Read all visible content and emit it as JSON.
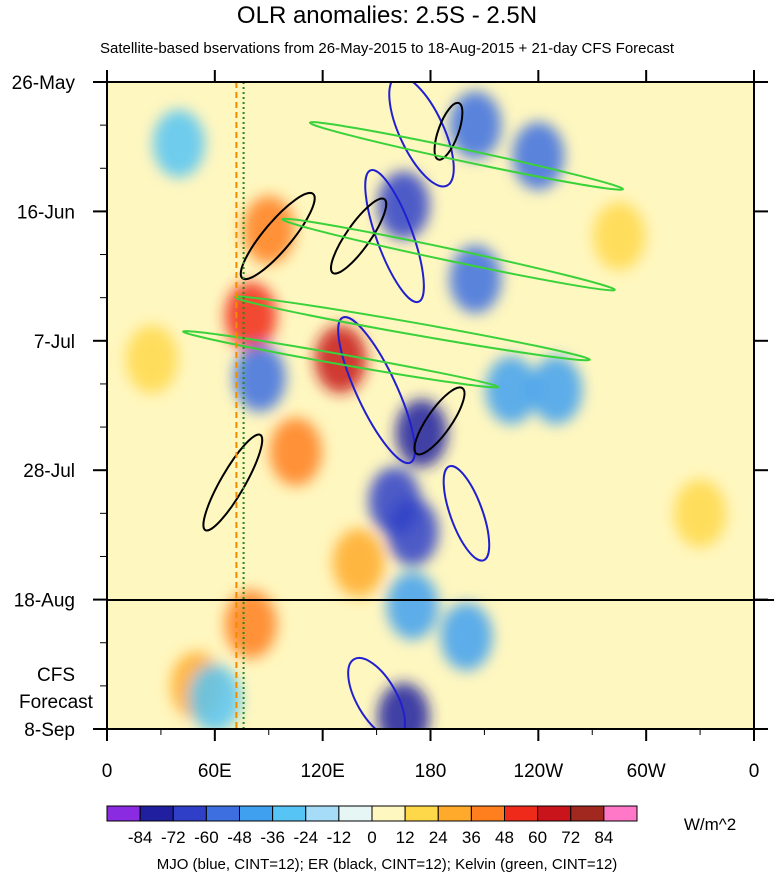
{
  "title": "OLR anomalies: 2.5S - 2.5N",
  "subtitle": "Satellite-based bservations from 26-May-2015 to 18-Aug-2015 + 21-day CFS Forecast",
  "footnote": "MJO (blue, CINT=12); ER (black, CINT=12); Kelvin (green, CINT=12)",
  "forecast_label_line1": "CFS",
  "forecast_label_line2": "Forecast",
  "chart_data": {
    "type": "heatmap",
    "title": "OLR anomalies: 2.5S - 2.5N",
    "subtitle": "Satellite-based bservations from 26-May-2015 to 18-Aug-2015 + 21-day CFS Forecast",
    "x_axis": {
      "range_deg": [
        0,
        360
      ],
      "ticks": [
        {
          "lon": 0,
          "label": "0"
        },
        {
          "lon": 60,
          "label": "60E"
        },
        {
          "lon": 120,
          "label": "120E"
        },
        {
          "lon": 180,
          "label": "180"
        },
        {
          "lon": 240,
          "label": "120W"
        },
        {
          "lon": 300,
          "label": "60W"
        },
        {
          "lon": 360,
          "label": "0"
        }
      ]
    },
    "y_axis": {
      "range": [
        "26-May-2015",
        "8-Sep-2015"
      ],
      "ticks": [
        {
          "day": 0,
          "label": "26-May"
        },
        {
          "day": 21,
          "label": "16-Jun"
        },
        {
          "day": 42,
          "label": "7-Jul"
        },
        {
          "day": 63,
          "label": "28-Jul"
        },
        {
          "day": 84,
          "label": "18-Aug"
        },
        {
          "day": 105,
          "label": "8-Sep"
        }
      ],
      "observation_end": "18-Aug",
      "forecast_days": 21
    },
    "colorbar": {
      "units": "W/m^2",
      "levels": [
        -84,
        -72,
        -60,
        -48,
        -36,
        -24,
        -12,
        0,
        12,
        24,
        36,
        48,
        60,
        72,
        84
      ],
      "colors": [
        "#8a2be2",
        "#1f1fa0",
        "#2f3fc8",
        "#3d6fe0",
        "#3fa0f0",
        "#56c4f5",
        "#a6dcf7",
        "#e6f6f4",
        "#fff7c0",
        "#ffd84a",
        "#ffaa2a",
        "#ff7f1f",
        "#f02a1a",
        "#c8141a",
        "#a0281e",
        "#ff78c8"
      ]
    },
    "contours": [
      {
        "name": "MJO",
        "color": "blue",
        "cint": 12
      },
      {
        "name": "ER",
        "color": "black",
        "cint": 12
      },
      {
        "name": "Kelvin",
        "color": "green",
        "cint": 12
      }
    ],
    "reference_lines": [
      {
        "lon": 72,
        "color": "#f08c00",
        "style": "dashed"
      },
      {
        "lon": 76,
        "color": "#228b22",
        "style": "dotted"
      }
    ],
    "anomaly_features": [
      {
        "lon": 80,
        "day": 38,
        "value": 60
      },
      {
        "lon": 130,
        "day": 45,
        "value": 72
      },
      {
        "lon": 90,
        "day": 24,
        "value": 48
      },
      {
        "lon": 105,
        "day": 60,
        "value": 48
      },
      {
        "lon": 80,
        "day": 88,
        "value": 48
      },
      {
        "lon": 50,
        "day": 98,
        "value": 36
      },
      {
        "lon": 140,
        "day": 78,
        "value": 36
      },
      {
        "lon": 25,
        "day": 45,
        "value": 24
      },
      {
        "lon": 330,
        "day": 50,
        "value": 12
      },
      {
        "lon": 285,
        "day": 25,
        "value": 24
      },
      {
        "lon": 330,
        "day": 70,
        "value": 24
      },
      {
        "lon": 175,
        "day": 57,
        "value": -72
      },
      {
        "lon": 160,
        "day": 68,
        "value": -60
      },
      {
        "lon": 170,
        "day": 73,
        "value": -60
      },
      {
        "lon": 165,
        "day": 20,
        "value": -60
      },
      {
        "lon": 205,
        "day": 7,
        "value": -48
      },
      {
        "lon": 240,
        "day": 12,
        "value": -48
      },
      {
        "lon": 205,
        "day": 32,
        "value": -48
      },
      {
        "lon": 225,
        "day": 50,
        "value": -36
      },
      {
        "lon": 170,
        "day": 85,
        "value": -36
      },
      {
        "lon": 165,
        "day": 103,
        "value": -72
      },
      {
        "lon": 200,
        "day": 90,
        "value": -36
      },
      {
        "lon": 85,
        "day": 48,
        "value": -48
      },
      {
        "lon": 250,
        "day": 50,
        "value": -36
      },
      {
        "lon": 40,
        "day": 10,
        "value": -24
      },
      {
        "lon": 60,
        "day": 100,
        "value": -24
      }
    ]
  }
}
